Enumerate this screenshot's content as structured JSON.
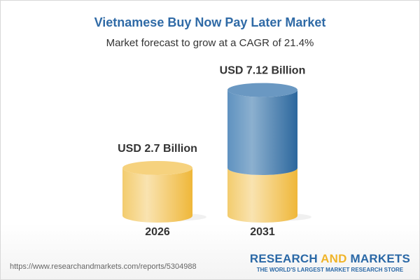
{
  "title": "Vietnamese Buy Now Pay Later Market",
  "subtitle": "Market forecast to grow at a CAGR of 21.4%",
  "chart_data": {
    "type": "bar",
    "style": "3d-cylinder",
    "categories": [
      "2026",
      "2031"
    ],
    "values": [
      2.7,
      7.12
    ],
    "unit": "USD Billion",
    "data_labels": [
      "USD 2.7 Billion",
      "USD 7.12 Billion"
    ],
    "colors": {
      "base": "#f2c25a",
      "growth": "#3f7bb0"
    }
  },
  "footer": {
    "url": "https://www.researchandmarkets.com/reports/5304988",
    "logo_part1": "RESEARCH ",
    "logo_part2": "AND",
    "logo_part3": " MARKETS",
    "tagline": "THE WORLD'S LARGEST MARKET RESEARCH STORE"
  }
}
